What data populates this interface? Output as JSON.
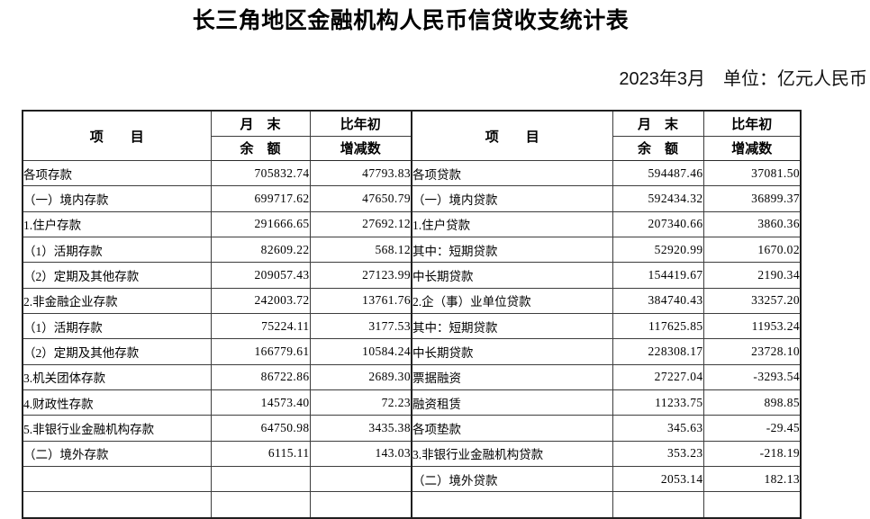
{
  "page": {
    "title": "长三角地区金融机构人民币信贷收支统计表",
    "meta": "2023年3月　单位：亿元人民币"
  },
  "table": {
    "header": {
      "item": "项　　目",
      "month_end": "月　末",
      "balance": "余　额",
      "vs_year_start": "比年初",
      "change": "增减数"
    },
    "left_rows": [
      {
        "label": "各项存款",
        "indent": 0,
        "balance": "705832.74",
        "change": "47793.83"
      },
      {
        "label": "（一）境内存款",
        "indent": 1,
        "balance": "699717.62",
        "change": "47650.79"
      },
      {
        "label": "1.住户存款",
        "indent": 2,
        "balance": "291666.65",
        "change": "27692.12"
      },
      {
        "label": "（1）活期存款",
        "indent": 3,
        "balance": "82609.22",
        "change": "568.12"
      },
      {
        "label": "（2）定期及其他存款",
        "indent": 3,
        "balance": "209057.43",
        "change": "27123.99"
      },
      {
        "label": "2.非金融企业存款",
        "indent": 2,
        "balance": "242003.72",
        "change": "13761.76"
      },
      {
        "label": "（1）活期存款",
        "indent": 3,
        "balance": "75224.11",
        "change": "3177.53"
      },
      {
        "label": "（2）定期及其他存款",
        "indent": 3,
        "balance": "166779.61",
        "change": "10584.24"
      },
      {
        "label": "3.机关团体存款",
        "indent": 2,
        "balance": "86722.86",
        "change": "2689.30"
      },
      {
        "label": "4.财政性存款",
        "indent": 2,
        "balance": "14573.40",
        "change": "72.23"
      },
      {
        "label": "5.非银行业金融机构存款",
        "indent": 2,
        "balance": "64750.98",
        "change": "3435.38"
      },
      {
        "label": "（二）境外存款",
        "indent": 1,
        "balance": "6115.11",
        "change": "143.03"
      },
      {
        "label": "",
        "indent": 0,
        "balance": "",
        "change": ""
      },
      {
        "label": "",
        "indent": 0,
        "balance": "",
        "change": ""
      }
    ],
    "right_rows": [
      {
        "label": "各项贷款",
        "indent": 0,
        "balance": "594487.46",
        "change": "37081.50"
      },
      {
        "label": "（一）境内贷款",
        "indent": 1,
        "balance": "592434.32",
        "change": "36899.37"
      },
      {
        "label": "1.住户贷款",
        "indent": 2,
        "balance": "207340.66",
        "change": "3860.36"
      },
      {
        "label": "其中：短期贷款",
        "indent": 4,
        "balance": "52920.99",
        "change": "1670.02"
      },
      {
        "label": "中长期贷款",
        "indent": 5,
        "balance": "154419.67",
        "change": "2190.34"
      },
      {
        "label": "2.企（事）业单位贷款",
        "indent": 2,
        "balance": "384740.43",
        "change": "33257.20"
      },
      {
        "label": "其中：短期贷款",
        "indent": 4,
        "balance": "117625.85",
        "change": "11953.24"
      },
      {
        "label": "中长期贷款",
        "indent": 5,
        "balance": "228308.17",
        "change": "23728.10"
      },
      {
        "label": "票据融资",
        "indent": 5,
        "balance": "27227.04",
        "change": "-3293.54"
      },
      {
        "label": "融资租赁",
        "indent": 5,
        "balance": "11233.75",
        "change": "898.85"
      },
      {
        "label": "各项垫款",
        "indent": 5,
        "balance": "345.63",
        "change": "-29.45"
      },
      {
        "label": "3.非银行业金融机构贷款",
        "indent": 2,
        "balance": "353.23",
        "change": "-218.19"
      },
      {
        "label": "（二）境外贷款",
        "indent": 1,
        "balance": "2053.14",
        "change": "182.13"
      },
      {
        "label": "",
        "indent": 0,
        "balance": "",
        "change": ""
      }
    ]
  }
}
